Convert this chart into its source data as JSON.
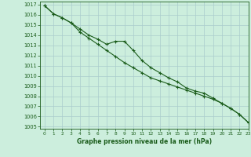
{
  "title": "Graphe pression niveau de la mer (hPa)",
  "bg_color": "#cceedd",
  "grid_color": "#aacccc",
  "line_color": "#1a5c1a",
  "xlim": [
    -0.5,
    23
  ],
  "ylim": [
    1004.8,
    1017.3
  ],
  "xticks": [
    0,
    1,
    2,
    3,
    4,
    5,
    6,
    7,
    8,
    9,
    10,
    11,
    12,
    13,
    14,
    15,
    16,
    17,
    18,
    19,
    20,
    21,
    22,
    23
  ],
  "yticks": [
    1005,
    1006,
    1007,
    1008,
    1009,
    1010,
    1011,
    1012,
    1013,
    1014,
    1015,
    1016,
    1017
  ],
  "series1_x": [
    0,
    1,
    2,
    3,
    4,
    5,
    6,
    7,
    8,
    9,
    10,
    11,
    12,
    13,
    14,
    15,
    16,
    17,
    18,
    19,
    20,
    21,
    22,
    23
  ],
  "series1_y": [
    1016.9,
    1016.1,
    1015.7,
    1015.2,
    1014.6,
    1014.0,
    1013.6,
    1013.1,
    1013.4,
    1013.4,
    1012.5,
    1011.5,
    1010.8,
    1010.3,
    1009.8,
    1009.4,
    1008.8,
    1008.5,
    1008.3,
    1007.8,
    1007.3,
    1006.8,
    1006.2,
    1005.4
  ],
  "series2_x": [
    0,
    1,
    2,
    3,
    4,
    5,
    6,
    7,
    8,
    9,
    10,
    11,
    12,
    13,
    14,
    15,
    16,
    17,
    18,
    19,
    20,
    21,
    22,
    23
  ],
  "series2_y": [
    1016.9,
    1016.1,
    1015.7,
    1015.2,
    1014.3,
    1013.7,
    1013.1,
    1012.5,
    1011.9,
    1011.3,
    1010.8,
    1010.3,
    1009.8,
    1009.5,
    1009.2,
    1008.9,
    1008.6,
    1008.3,
    1008.0,
    1007.7,
    1007.3,
    1006.8,
    1006.2,
    1005.4
  ]
}
